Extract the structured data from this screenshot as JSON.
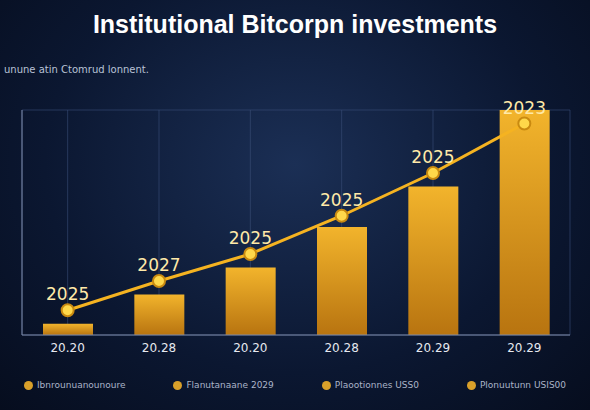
{
  "chart_data": {
    "type": "bar",
    "title": "Institutional Bitcorpn investments",
    "subtitle": "unune atin Ctomrud lonnent.",
    "categories": [
      "20.20",
      "20.28",
      "20.20",
      "20.28",
      "20.29",
      "20.29"
    ],
    "values": [
      5,
      18,
      30,
      48,
      66,
      100
    ],
    "color": "#f2b42c",
    "trend": {
      "type": "line",
      "values": [
        11,
        24,
        36,
        53,
        72,
        94
      ],
      "point_labels": [
        "2025",
        "2027",
        "2025",
        "2025",
        "2025",
        "2023"
      ],
      "color": "#f5b321",
      "marker": "circle"
    },
    "ylim": [
      0,
      100
    ],
    "yticks": [
      0,
      25,
      50,
      75,
      100
    ],
    "grid": true,
    "tick_labels": "x",
    "footer": [
      "Ibnrounuanounoure",
      "Flanutanaane 2029",
      "Plaootionnes USS0",
      "Plonuutunn USIS00"
    ]
  }
}
